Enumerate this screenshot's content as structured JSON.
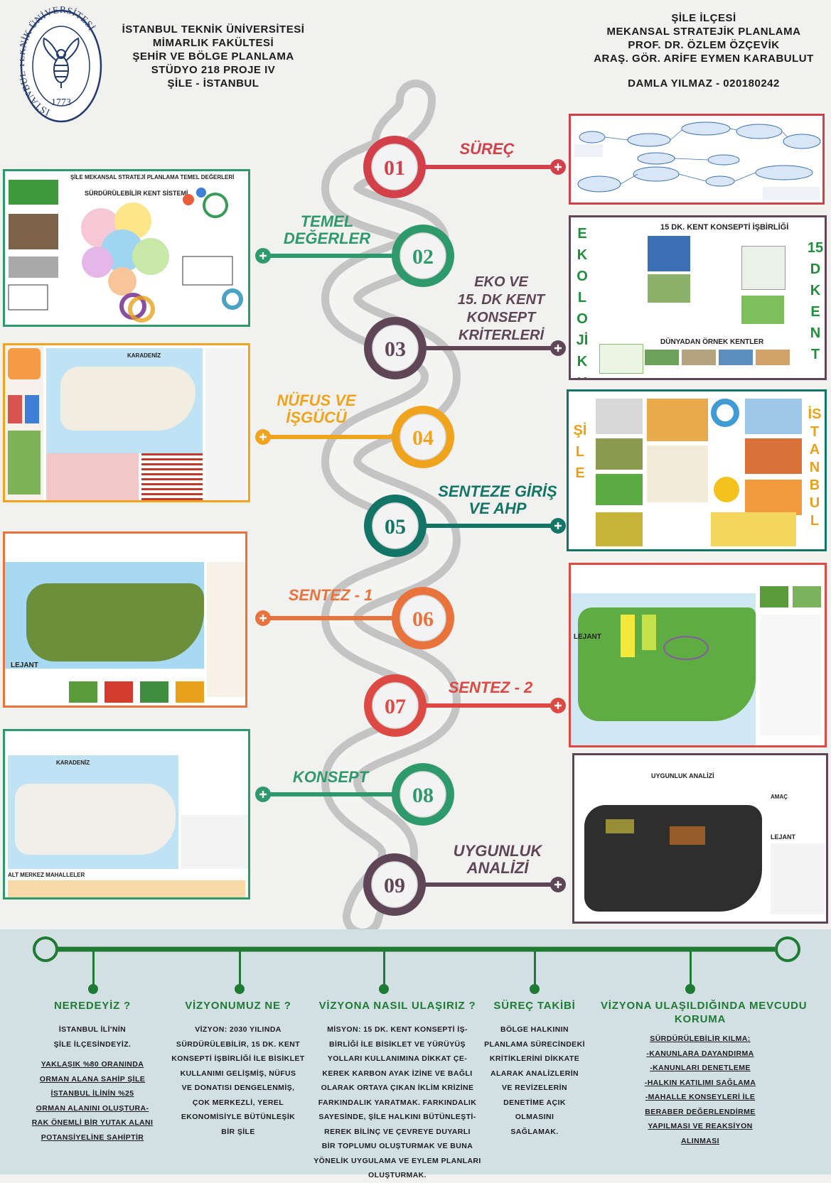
{
  "header": {
    "left_lines": [
      "İSTANBUL TEKNİK ÜNİVERSİTESİ",
      "MİMARLIK FAKÜLTESİ",
      "ŞEHİR VE BÖLGE PLANLAMA",
      "STÜDYO 218 PROJE IV",
      "ŞİLE - İSTANBUL"
    ],
    "right_lines": [
      "ŞİLE İLÇESİ",
      "MEKANSAL STRATEJİK PLANLAMA",
      "PROF. DR. ÖZLEM ÖZÇEVİK",
      "ARAŞ. GÖR. ARİFE EYMEN KARABULUT"
    ],
    "author": "DAMLA YILMAZ - 020180242",
    "logo": {
      "ring_text": "İSTANBUL TEKNİK ÜNİVERSİTESİ",
      "year": "1773",
      "icon": "bee-emblem-icon"
    }
  },
  "steps": [
    {
      "num": "01",
      "label": "SÜREÇ",
      "color": "#d2414a"
    },
    {
      "num": "02",
      "label": "TEMEL\nDEĞERLER",
      "color": "#2e9a6c"
    },
    {
      "num": "03",
      "label": "EKO VE\n15. DK KENT\nKONSEPT\nKRİTERLERİ",
      "color": "#5f4656"
    },
    {
      "num": "04",
      "label": "NÜFUS VE\nİŞGÜCÜ",
      "color": "#f0a31c"
    },
    {
      "num": "05",
      "label": "SENTEZE GİRİŞ\nVE AHP",
      "color": "#137566"
    },
    {
      "num": "06",
      "label": "SENTEZ - 1",
      "color": "#e8733c"
    },
    {
      "num": "07",
      "label": "SENTEZ - 2",
      "color": "#dc4a43"
    },
    {
      "num": "08",
      "label": "KONSEPT",
      "color": "#2e9a6c"
    },
    {
      "num": "09",
      "label": "UYGUNLUK\nANALİZİ",
      "color": "#5f4656"
    }
  ],
  "boards": {
    "b01": {
      "border": "#d2414a"
    },
    "b02": {
      "border": "#2e9a6c",
      "title": "ŞİLE MEKANSAL STRATEJİ PLANLAMA TEMEL DEĞERLERİ",
      "subtitle": "SÜRDÜRÜLEBİLİR KENT SİSTEMİ"
    },
    "b03": {
      "border": "#5f4656",
      "title": "15 DK. KENT KONSEPTİ İŞBİRLİĞİ",
      "left_vertical": "EKOLOJİKKENT",
      "right_vertical": "15DKENT",
      "footer": "DÜNYADAN ÖRNEK KENTLER"
    },
    "b04": {
      "border": "#f0a31c",
      "map_label": "KARADENİZ"
    },
    "b05": {
      "border": "#137566",
      "left_vertical": "ŞİLE",
      "right_vertical": "İSTANBUL"
    },
    "b06": {
      "border": "#e8733c",
      "legend": "LEJANT"
    },
    "b07": {
      "border": "#dc4a43",
      "legend": "LEJANT"
    },
    "b08": {
      "border": "#2e9a6c",
      "map_label": "KARADENİZ",
      "footer": "ALT MERKEZ MAHALLELER"
    },
    "b09": {
      "border": "#5f4656",
      "title": "UYGUNLUK ANALİZİ",
      "side_heading": "AMAÇ",
      "legend": "LEJANT"
    }
  },
  "timeline": [
    {
      "heading": "NEREDEYİZ ?",
      "lines": [
        "İSTANBUL İLİ'NİN",
        "ŞİLE İLÇESİNDEYİZ."
      ],
      "underlined": [
        "YAKLAŞIK %80 ORANINDA",
        "ORMAN ALANA SAHİP ŞİLE",
        "İSTANBUL İLİNİN %25",
        "ORMAN ALANINI OLUŞTURA-",
        "RAK ÖNEMLİ BİR YUTAK ALANI",
        "POTANSİYELİNE SAHİPTİR"
      ]
    },
    {
      "heading": "VİZYONUMUZ NE ?",
      "lines": [
        "VİZYON: 2030 YILINDA",
        "SÜRDÜRÜLEBİLİR, 15 DK. KENT",
        "KONSEPTİ İŞBİRLİĞİ İLE BİSİKLET",
        "KULLANIMI GELİŞMİŞ, NÜFUS",
        "VE DONATISI DENGELENMİŞ,",
        "ÇOK MERKEZLİ, YEREL",
        "EKONOMİSİYLE BÜTÜNLEŞİK",
        "BİR ŞİLE"
      ],
      "underlined": []
    },
    {
      "heading": "VİZYONA NASIL ULAŞIRIZ ?",
      "lines": [
        "MİSYON: 15 DK. KENT KONSEPTİ İŞ-",
        "BİRLİĞİ İLE BİSİKLET VE YÜRÜYÜŞ",
        "YOLLARI KULLANIMINA DİKKAT ÇE-",
        "KEREK KARBON AYAK İZİNE VE BAĞLI",
        "OLARAK ORTAYA ÇIKAN İKLİM KRİZİNE",
        "FARKINDALIK YARATMAK. FARKINDALIK",
        "SAYESİNDE, ŞİLE HALKINI BÜTÜNLEŞTİ-",
        "REREK BİLİNÇ VE ÇEVREYE DUYARLI",
        "BİR TOPLUMU OLUŞTURMAK VE BUNA",
        "YÖNELİK UYGULAMA VE EYLEM PLANLARI",
        "OLUŞTURMAK."
      ],
      "underlined": []
    },
    {
      "heading": "SÜREÇ TAKİBİ",
      "lines": [
        "BÖLGE HALKININ",
        "PLANLAMA SÜRECİNDEKİ",
        "KRİTİKLERİNİ DİKKATE",
        "ALARAK ANALİZLERİN",
        "VE REVİZELERİN",
        "DENETİME AÇIK",
        "OLMASINI",
        "SAĞLAMAK."
      ],
      "underlined": []
    },
    {
      "heading": "VİZYONA ULAŞILDIĞINDA MEVCUDU\nKORUMA",
      "lines": [],
      "underlined": [
        "SÜRDÜRÜLEBİLİR KILMA:",
        "-KANUNLARA DAYANDIRMA",
        "-KANUNLARI DENETLEME",
        "-HALKIN KATILIMI SAĞLAMA",
        "-MAHALLE KONSEYLERİ İLE",
        "BERABER DEĞERLENDİRME",
        "YAPILMASI VE REAKSİYON",
        "ALINMASI"
      ]
    }
  ],
  "colors": {
    "timeline_green": "#1f7a34",
    "bottom_bg": "#d2e0e4",
    "road": "#c9c9c9"
  }
}
